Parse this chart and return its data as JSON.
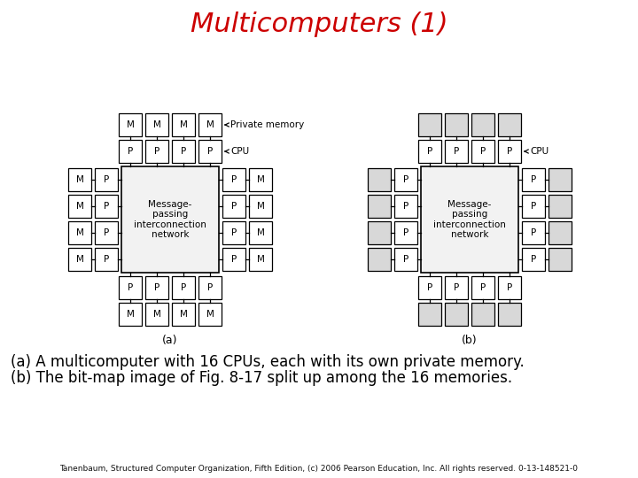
{
  "title": "Multicomputers (1)",
  "title_color": "#cc0000",
  "title_fontsize": 22,
  "caption_a": "(a) A multicomputer with 16 CPUs, each with its own private memory.",
  "caption_b": "(b) The bit-map image of Fig. 8-17 split up among the 16 memories.",
  "caption_fontsize": 12,
  "footnote": "Tanenbaum, Structured Computer Organization, Fifth Edition, (c) 2006 Pearson Education, Inc. All rights reserved. 0-13-148521-0",
  "footnote_fontsize": 6.5,
  "bg_color": "#ffffff",
  "box_color": "#000000",
  "box_fill": "#ffffff",
  "network_fill": "#f2f2f2",
  "icon_fill": "#d8d8d8",
  "label_a": "(a)",
  "label_b": "(b)",
  "network_text": "Message-\npassing\ninterconnection\nnetwork",
  "private_memory_label": "Private memory",
  "cpu_label": "CPU"
}
